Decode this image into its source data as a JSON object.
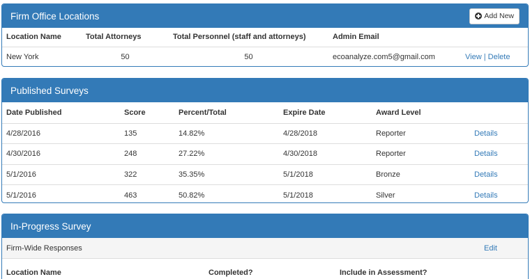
{
  "office_locations": {
    "title": "Firm Office Locations",
    "add_button_label": "Add New",
    "columns": [
      "Location Name",
      "Total Attorneys",
      "Total Personnel (staff and attorneys)",
      "Admin Email"
    ],
    "rows": [
      {
        "location": "New York",
        "attorneys": "50",
        "personnel": "50",
        "email": "ecoanalyze.com5@gmail.com",
        "view_label": "View",
        "separator": "|",
        "delete_label": "Delete"
      }
    ]
  },
  "published_surveys": {
    "title": "Published Surveys",
    "columns": [
      "Date Published",
      "Score",
      "Percent/Total",
      "Expire Date",
      "Award Level",
      ""
    ],
    "rows": [
      {
        "date": "4/28/2016",
        "score": "135",
        "percent": "14.82%",
        "expire": "4/28/2018",
        "award": "Reporter",
        "action": "Details"
      },
      {
        "date": "4/30/2016",
        "score": "248",
        "percent": "27.22%",
        "expire": "4/30/2018",
        "award": "Reporter",
        "action": "Details"
      },
      {
        "date": "5/1/2016",
        "score": "322",
        "percent": "35.35%",
        "expire": "5/1/2018",
        "award": "Bronze",
        "action": "Details"
      },
      {
        "date": "5/1/2016",
        "score": "463",
        "percent": "50.82%",
        "expire": "5/1/2018",
        "award": "Silver",
        "action": "Details"
      }
    ]
  },
  "in_progress": {
    "title": "In-Progress Survey",
    "subbar_label": "Firm-Wide Responses",
    "edit_label": "Edit",
    "columns": [
      "Location Name",
      "Completed?",
      "Include in Assessment?"
    ]
  },
  "colors": {
    "primary": "#337ab7",
    "link": "#337ab7",
    "border": "#dddddd"
  }
}
